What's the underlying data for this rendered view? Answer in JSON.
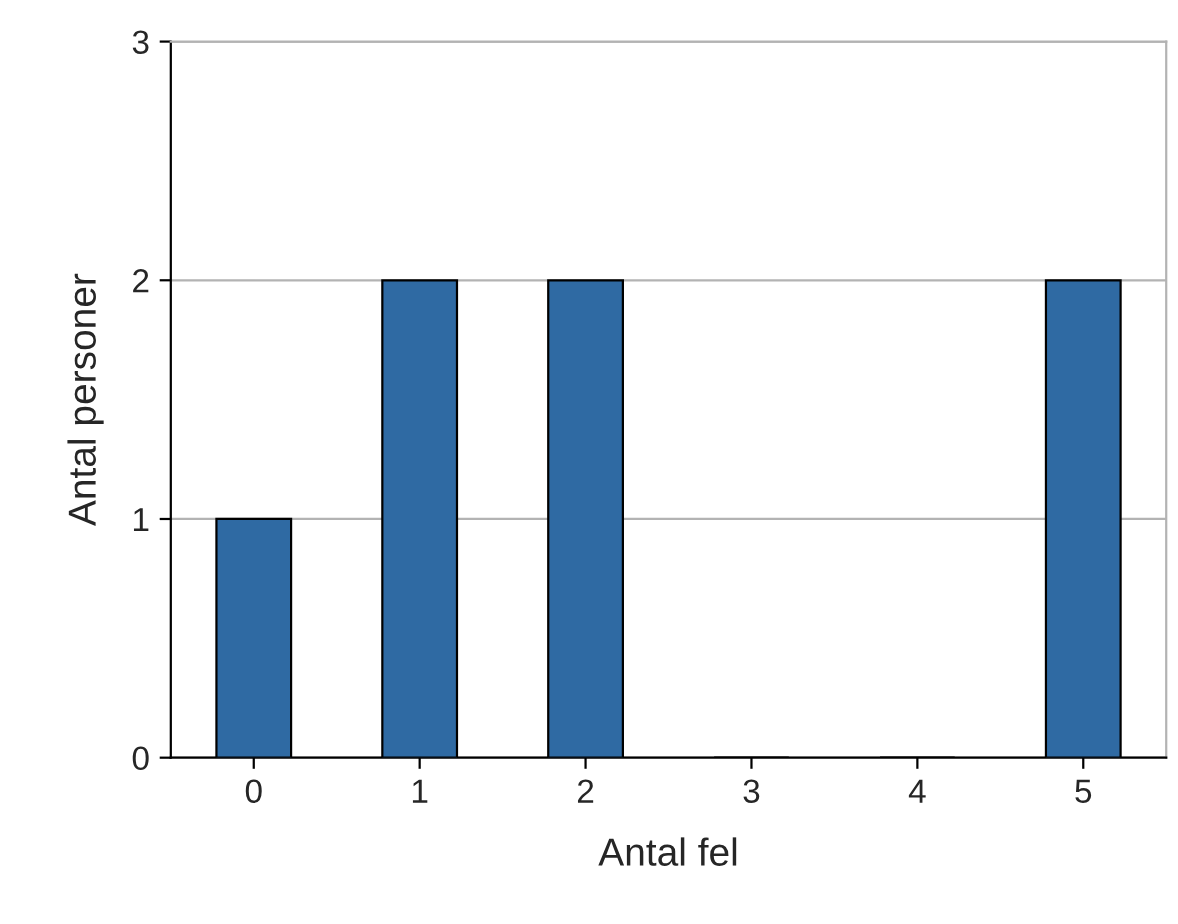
{
  "chart_data": {
    "type": "bar",
    "xlabel": "Antal fel",
    "ylabel": "Antal personer",
    "categories": [
      "0",
      "1",
      "2",
      "3",
      "4",
      "5"
    ],
    "values": [
      1,
      2,
      2,
      0,
      0,
      2
    ],
    "color": "#2f6aa3",
    "ylim": [
      0,
      3
    ],
    "yticks": [
      0,
      1,
      2,
      3
    ],
    "grid": "y"
  }
}
